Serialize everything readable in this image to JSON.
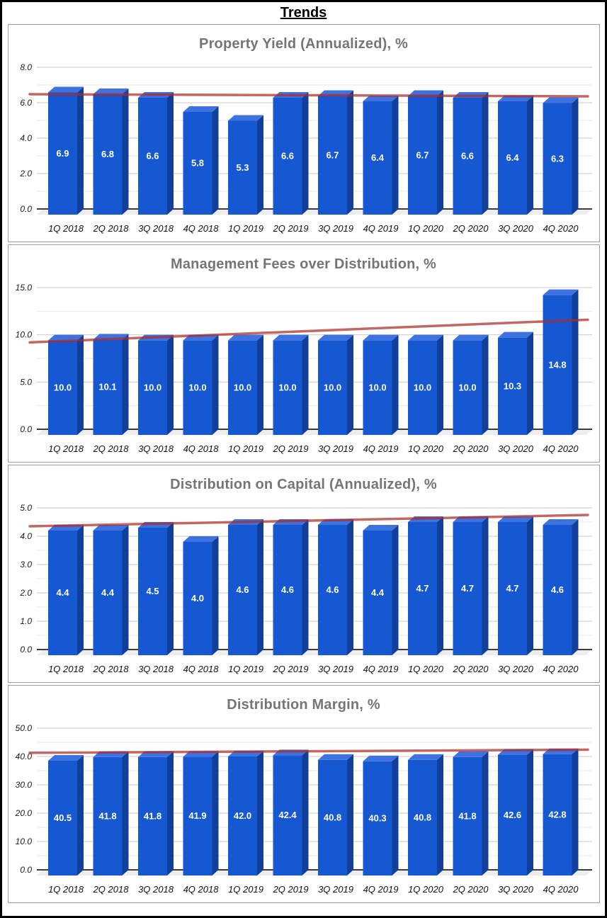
{
  "page": {
    "title": "Trends"
  },
  "colors": {
    "bar_front": "#1657d2",
    "bar_top": "#3e72e0",
    "bar_side": "#123f99",
    "trendline": "rgba(170,45,40,0.72)",
    "grid_major": "#c9c9c9",
    "grid_minor": "#e9e9e9",
    "axis_line": "#3c3c3c",
    "floor": "#ededed",
    "title_color": "#757575",
    "value_label_color": "#ffffff"
  },
  "chart_data": [
    {
      "type": "bar",
      "title": "Property Yield (Annualized), %",
      "categories": [
        "1Q 2018",
        "2Q 2018",
        "3Q 2018",
        "4Q 2018",
        "1Q 2019",
        "2Q 2019",
        "3Q 2019",
        "4Q 2019",
        "1Q 2020",
        "2Q 2020",
        "3Q 2020",
        "4Q 2020"
      ],
      "values": [
        6.9,
        6.8,
        6.6,
        5.8,
        5.3,
        6.6,
        6.7,
        6.4,
        6.7,
        6.6,
        6.4,
        6.3
      ],
      "ylim": [
        0,
        8
      ],
      "y_label_step": 2,
      "y_minor_step": 1,
      "grid": true,
      "legend": "none",
      "trendline": {
        "start": 6.48,
        "end": 6.36
      }
    },
    {
      "type": "bar",
      "title": "Management Fees over Distribution, %",
      "categories": [
        "1Q 2018",
        "2Q 2018",
        "3Q 2018",
        "4Q 2018",
        "1Q 2019",
        "2Q 2019",
        "3Q 2019",
        "4Q 2019",
        "1Q 2020",
        "2Q 2020",
        "3Q 2020",
        "4Q 2020"
      ],
      "values": [
        10.0,
        10.1,
        10.0,
        10.0,
        10.0,
        10.0,
        10.0,
        10.0,
        10.0,
        10.0,
        10.3,
        14.8
      ],
      "ylim": [
        0,
        15
      ],
      "y_label_step": 5,
      "y_minor_step": 2.5,
      "grid": true,
      "legend": "none",
      "trendline": {
        "start": 9.2,
        "end": 11.6
      }
    },
    {
      "type": "bar",
      "title": "Distribution on Capital (Annualized), %",
      "categories": [
        "1Q 2018",
        "2Q 2018",
        "3Q 2018",
        "4Q 2018",
        "1Q 2019",
        "2Q 2019",
        "3Q 2019",
        "4Q 2019",
        "1Q 2020",
        "2Q 2020",
        "3Q 2020",
        "4Q 2020"
      ],
      "values": [
        4.4,
        4.4,
        4.5,
        4.0,
        4.6,
        4.6,
        4.6,
        4.4,
        4.7,
        4.7,
        4.7,
        4.6
      ],
      "ylim": [
        0,
        5
      ],
      "y_label_step": 1,
      "y_minor_step": 0.5,
      "grid": true,
      "legend": "none",
      "trendline": {
        "start": 4.35,
        "end": 4.75
      }
    },
    {
      "type": "bar",
      "title": "Distribution Margin, %",
      "categories": [
        "1Q 2018",
        "2Q 2018",
        "3Q 2018",
        "4Q 2018",
        "1Q 2019",
        "2Q 2019",
        "3Q 2019",
        "4Q 2019",
        "1Q 2020",
        "2Q 2020",
        "3Q 2020",
        "4Q 2020"
      ],
      "values": [
        40.5,
        41.8,
        41.8,
        41.9,
        42.0,
        42.4,
        40.8,
        40.3,
        40.8,
        41.8,
        42.6,
        42.8
      ],
      "ylim": [
        0,
        50
      ],
      "y_label_step": 10,
      "y_minor_step": 5,
      "grid": true,
      "legend": "none",
      "trendline": {
        "start": 41.3,
        "end": 42.4
      }
    }
  ]
}
